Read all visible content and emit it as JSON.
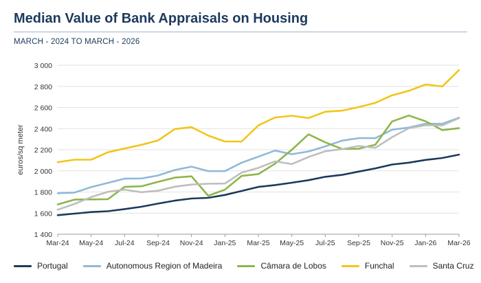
{
  "header": {
    "title": "Median Value of Bank Appraisals on Housing",
    "subtitle": "MARCH - 2024 TO MARCH - 2026"
  },
  "chart_data": {
    "type": "line",
    "title": "Median Value of Bank Appraisals on Housing",
    "subtitle": "MARCH - 2024 TO MARCH - 2026",
    "ylabel": "euros/sq meter",
    "xlabel": "",
    "ylim": [
      1400,
      3000
    ],
    "yticks": [
      1400,
      1600,
      1800,
      2000,
      2200,
      2400,
      2600,
      2800,
      3000
    ],
    "ytick_labels": [
      "1 400",
      "1 600",
      "1 800",
      "2 000",
      "2 200",
      "2 400",
      "2 600",
      "2 800",
      "3 000"
    ],
    "grid": "horizontal",
    "legend_position": "bottom",
    "categories": [
      "Mar-24",
      "Apr-24",
      "May-24",
      "Jun-24",
      "Jul-24",
      "Aug-24",
      "Sep-24",
      "Oct-24",
      "Nov-24",
      "Dec-24",
      "Jan-25",
      "Feb-25",
      "Mar-25",
      "Apr-25",
      "May-25",
      "Jun-25",
      "Jul-25",
      "Aug-25",
      "Sep-25",
      "Oct-25",
      "Nov-25",
      "Dec-25",
      "Jan-26",
      "Feb-26",
      "Mar-26"
    ],
    "xtick_labels": [
      "Mar-24",
      "May-24",
      "Jul-24",
      "Sep-24",
      "Nov-24",
      "Jan-25",
      "Mar-25",
      "May-25",
      "Jul-25",
      "Sep-25",
      "Nov-25",
      "Jan-26",
      "Mar-26"
    ],
    "series": [
      {
        "name": "Portugal",
        "color": "#1b3a5c",
        "values": [
          1580,
          1595,
          1610,
          1618,
          1638,
          1660,
          1690,
          1718,
          1738,
          1745,
          1772,
          1810,
          1848,
          1866,
          1888,
          1912,
          1944,
          1962,
          1993,
          2024,
          2060,
          2078,
          2104,
          2122,
          2154
        ]
      },
      {
        "name": "Autonomous Region of Madeira",
        "color": "#8fb9d8",
        "values": [
          1788,
          1794,
          1846,
          1886,
          1926,
          1928,
          1956,
          2008,
          2040,
          1998,
          1998,
          2078,
          2134,
          2192,
          2158,
          2184,
          2232,
          2286,
          2310,
          2310,
          2390,
          2410,
          2446,
          2446,
          2504
        ]
      },
      {
        "name": "Câmara de Lobos",
        "color": "#8db54a",
        "values": [
          1682,
          1728,
          1730,
          1732,
          1848,
          1854,
          1896,
          1936,
          1948,
          1764,
          1822,
          1952,
          1970,
          2068,
          2200,
          2346,
          2270,
          2208,
          2210,
          2248,
          2468,
          2524,
          2470,
          2386,
          2404
        ]
      },
      {
        "name": "Funchal",
        "color": "#f2c518",
        "values": [
          2082,
          2106,
          2106,
          2176,
          2212,
          2246,
          2288,
          2396,
          2414,
          2334,
          2278,
          2278,
          2430,
          2506,
          2522,
          2500,
          2560,
          2570,
          2604,
          2644,
          2716,
          2758,
          2818,
          2800,
          2954
        ]
      },
      {
        "name": "Santa Cruz",
        "color": "#bebebe",
        "values": [
          1632,
          1686,
          1752,
          1802,
          1822,
          1798,
          1812,
          1850,
          1870,
          1878,
          1880,
          1984,
          2028,
          2090,
          2064,
          2132,
          2186,
          2206,
          2236,
          2218,
          2320,
          2404,
          2432,
          2430,
          2500
        ]
      }
    ]
  }
}
